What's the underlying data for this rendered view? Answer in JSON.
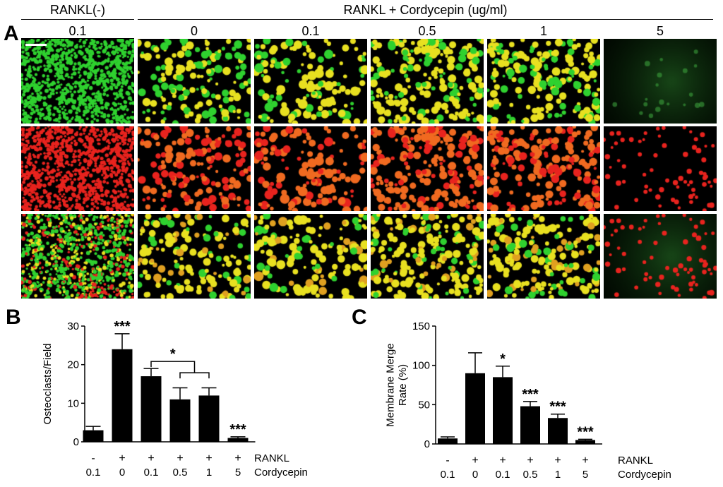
{
  "figure": {
    "panel_labels": [
      "A",
      "B",
      "C"
    ],
    "group_headers": [
      "RANKL(-)",
      "RANKL + Cordycepin (ug/ml)"
    ],
    "column_labels": [
      "0.1",
      "0",
      "0.1",
      "0.5",
      "1",
      "5"
    ]
  },
  "micrographs": {
    "rows": [
      "green",
      "red",
      "merge"
    ],
    "colors": {
      "green": "#2fd12f",
      "red": "#e8231e",
      "yellow": "#e8e020",
      "background": "#000000"
    },
    "scale_bar_present": true
  },
  "chart_data": [
    {
      "panel": "B",
      "type": "bar",
      "ylabel": "Osteoclasts/Field",
      "ylim": [
        0,
        30
      ],
      "yticks": [
        0,
        10,
        20,
        30
      ],
      "rankl": [
        "-",
        "+",
        "+",
        "+",
        "+",
        "+"
      ],
      "cordycepin": [
        "0.1",
        "0",
        "0.1",
        "0.5",
        "1",
        "5"
      ],
      "row_labels": [
        "RANKL",
        "Cordycepin"
      ],
      "values": [
        3,
        24,
        17,
        11,
        12,
        1
      ],
      "errors": [
        1,
        4,
        2,
        3,
        2,
        0.3
      ],
      "significance": [
        "",
        "***",
        "",
        "",
        "",
        "***"
      ],
      "comparison": {
        "label": "*",
        "from": 2,
        "to": [
          3,
          4
        ]
      }
    },
    {
      "panel": "C",
      "type": "bar",
      "ylabel": "Membrane Merge Rate (%)",
      "ylim": [
        0,
        150
      ],
      "yticks": [
        0,
        50,
        100,
        150
      ],
      "rankl": [
        "-",
        "+",
        "+",
        "+",
        "+",
        "+"
      ],
      "cordycepin": [
        "0.1",
        "0",
        "0.1",
        "0.5",
        "1",
        "5"
      ],
      "row_labels": [
        "RANKL",
        "Cordycepin"
      ],
      "values": [
        7,
        90,
        85,
        48,
        33,
        5
      ],
      "errors": [
        2,
        26,
        14,
        6,
        5,
        1
      ],
      "significance": [
        "",
        "",
        "*",
        "***",
        "***",
        "***"
      ]
    }
  ]
}
